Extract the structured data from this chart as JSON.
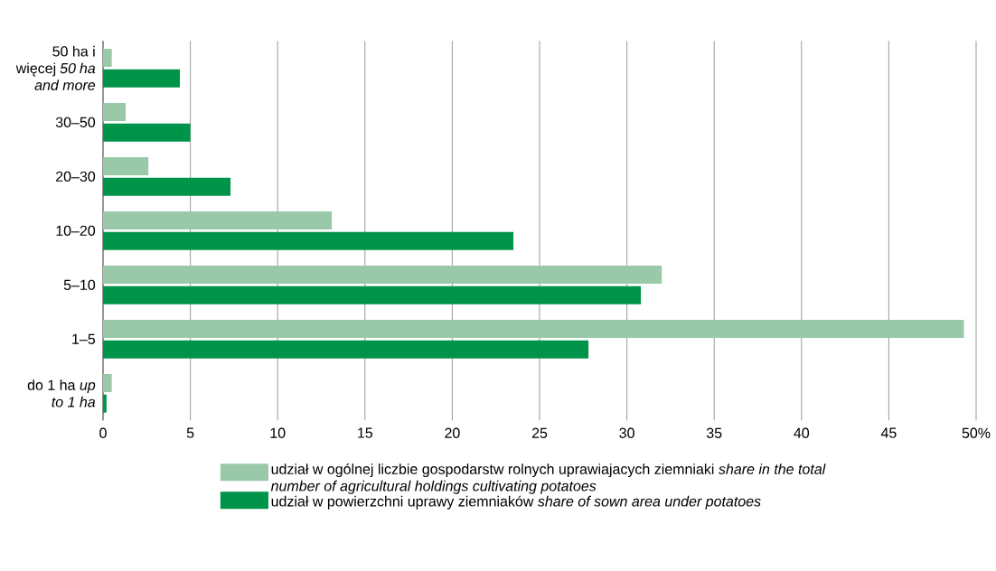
{
  "chart_data": {
    "type": "bar",
    "orientation": "horizontal",
    "categories": [
      "50 ha i więcej *50 ha and more*",
      "30–50",
      "20–30",
      "10–20",
      "5–10",
      "1–5",
      "do 1 ha *up to 1 ha*"
    ],
    "series": [
      {
        "name": "udział w ogólnej liczbie gospodarstw rolnych uprawiajacych ziemniaki *share in the total number of agricultural holdings cultivating potatoes*",
        "color": "#99c9a8",
        "values": [
          0.5,
          1.3,
          2.6,
          13.1,
          32.0,
          49.3,
          0.5
        ]
      },
      {
        "name": "udział w powierzchni uprawy ziemniaków *share of sown area under potatoes*",
        "color": "#00934a",
        "values": [
          4.4,
          5.0,
          7.3,
          23.5,
          30.8,
          27.8,
          0.2
        ]
      }
    ],
    "xlim": [
      0,
      50
    ],
    "xticks": [
      0,
      5,
      10,
      15,
      20,
      25,
      30,
      35,
      40,
      45,
      {
        "value": 50,
        "label": "50%"
      }
    ],
    "grid": "x",
    "legend": "bottom"
  }
}
